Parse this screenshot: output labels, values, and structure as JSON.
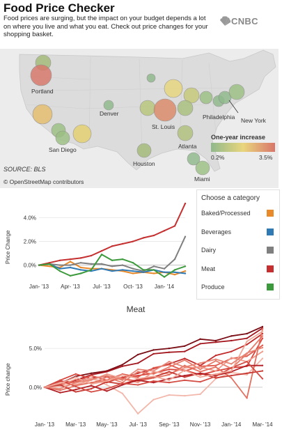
{
  "header": {
    "title": "Food Price Checker",
    "subtitle": "Food prices are surging, but the impact on your budget depends a lot on where you live and what you eat. Check out price changes for your shopping basket.",
    "brand": "CNBC"
  },
  "map": {
    "source": "SOURCE: BLS",
    "credit": "© OpenStreetMap contributors",
    "legend_title": "One-year increase",
    "legend_min": "0.2%",
    "legend_max": "3.5%",
    "legend_colors": [
      "#8fb98c",
      "#e9d67d",
      "#d9766a"
    ],
    "city_labels": [
      "Portland",
      "Denver",
      "San Diego",
      "St. Louis",
      "Houston",
      "Atlanta",
      "Philadelphia",
      "New York",
      "Miami"
    ]
  },
  "categories": {
    "header": "Choose a category",
    "items": [
      {
        "label": "Baked/Processed",
        "color": "#e8892a"
      },
      {
        "label": "Beverages",
        "color": "#2f79b5"
      },
      {
        "label": "Dairy",
        "color": "#7f7f7f"
      },
      {
        "label": "Meat",
        "color": "#c52f2f"
      },
      {
        "label": "Produce",
        "color": "#3c9a3c"
      }
    ]
  },
  "chart_data": [
    {
      "type": "line",
      "title": "",
      "xlabel": "",
      "ylabel": "Price Change",
      "x": [
        "Jan-13",
        "Feb-13",
        "Mar-13",
        "Apr-13",
        "May-13",
        "Jun-13",
        "Jul-13",
        "Aug-13",
        "Sep-13",
        "Oct-13",
        "Nov-13",
        "Dec-13",
        "Jan-14",
        "Feb-14",
        "Mar-14"
      ],
      "xticks": [
        "Jan- '13",
        "Apr- '13",
        "Jul- '13",
        "Oct- '13",
        "Jan- '14"
      ],
      "yticks": [
        "0.0%",
        "2.0%",
        "4.0%"
      ],
      "ylim": [
        -1.2,
        5.5
      ],
      "series": [
        {
          "name": "Baked/Processed",
          "color": "#e8892a",
          "values": [
            0,
            -0.1,
            -0.2,
            0.3,
            -0.2,
            -0.3,
            -0.3,
            -0.4,
            -0.5,
            -0.7,
            -0.6,
            -0.7,
            -0.6,
            -0.8,
            -0.5
          ]
        },
        {
          "name": "Beverages",
          "color": "#2f79b5",
          "values": [
            0,
            0.1,
            -0.3,
            -0.2,
            -0.4,
            -0.5,
            -0.3,
            -0.5,
            -0.4,
            -0.5,
            -0.6,
            -0.4,
            -0.6,
            -0.6,
            -0.7
          ]
        },
        {
          "name": "Dairy",
          "color": "#7f7f7f",
          "values": [
            0,
            0.1,
            0.0,
            0.0,
            0.2,
            0.1,
            0.1,
            -0.1,
            0.0,
            -0.3,
            -0.5,
            -0.1,
            -0.3,
            0.5,
            2.4
          ]
        },
        {
          "name": "Meat",
          "color": "#c52f2f",
          "values": [
            0,
            0.2,
            0.4,
            0.5,
            0.6,
            0.8,
            1.2,
            1.6,
            1.8,
            2.0,
            2.3,
            2.5,
            2.9,
            3.3,
            5.2
          ]
        },
        {
          "name": "Produce",
          "color": "#3c9a3c",
          "values": [
            0,
            0.1,
            -0.5,
            -0.9,
            -0.7,
            -0.4,
            0.9,
            0.4,
            0.5,
            0.2,
            -0.4,
            -0.4,
            -1.0,
            -0.4,
            -0.1
          ]
        }
      ]
    },
    {
      "type": "line",
      "title": "Meat",
      "xlabel": "",
      "ylabel": "Price change",
      "x": [
        "Jan-13",
        "Feb-13",
        "Mar-13",
        "Apr-13",
        "May-13",
        "Jun-13",
        "Jul-13",
        "Aug-13",
        "Sep-13",
        "Oct-13",
        "Nov-13",
        "Dec-13",
        "Jan-14",
        "Feb-14",
        "Mar-14"
      ],
      "xticks": [
        "Jan- '13",
        "Mar- '13",
        "May- '13",
        "Jul- '13",
        "Sep- '13",
        "Nov- '13",
        "Jan- '14",
        "Mar- '14"
      ],
      "yticks": [
        "0.0%",
        "5.0%"
      ],
      "ylim": [
        -3.6,
        8.6
      ],
      "series": [
        {
          "color": "#7a0c14",
          "values": [
            0,
            0.5,
            1.4,
            1.8,
            2.1,
            2.9,
            4.2,
            4.8,
            5.0,
            5.3,
            6.2,
            6.0,
            6.6,
            6.9,
            7.8
          ]
        },
        {
          "color": "#a4161e",
          "values": [
            0,
            0.3,
            0.9,
            1.6,
            2.0,
            2.7,
            3.1,
            4.3,
            4.5,
            4.6,
            5.6,
            5.8,
            6.0,
            6.3,
            7.6
          ]
        },
        {
          "color": "#c12a2a",
          "values": [
            0,
            0.8,
            0.6,
            1.2,
            1.4,
            1.2,
            1.8,
            2.4,
            3.0,
            3.7,
            2.8,
            4.1,
            4.6,
            5.5,
            6.9
          ]
        },
        {
          "color": "#d8433a",
          "values": [
            0,
            0.9,
            1.7,
            1.1,
            0.6,
            1.3,
            1.5,
            1.8,
            2.3,
            2.2,
            1.6,
            2.1,
            2.5,
            2.7,
            6.3
          ]
        },
        {
          "color": "#e05a4e",
          "values": [
            0,
            0.4,
            0.7,
            1.5,
            0.9,
            1.7,
            1.3,
            2.5,
            2.9,
            2.1,
            2.7,
            2.8,
            3.7,
            4.0,
            5.4
          ]
        },
        {
          "color": "#e87a6a",
          "values": [
            0,
            0.2,
            1.0,
            0.5,
            1.3,
            0.6,
            2.0,
            1.7,
            2.6,
            3.5,
            2.3,
            3.4,
            2.4,
            4.3,
            6.6
          ]
        },
        {
          "color": "#ef9a8a",
          "values": [
            0,
            0.6,
            0.3,
            0.9,
            1.7,
            1.1,
            0.6,
            2.0,
            1.7,
            2.5,
            2.6,
            2.1,
            3.8,
            3.3,
            4.6
          ]
        },
        {
          "color": "#f3b7aa",
          "values": [
            0,
            0.1,
            0.5,
            1.2,
            0.3,
            -0.8,
            -3.4,
            -1.6,
            -1.0,
            -1.1,
            -0.9,
            1.1,
            1.9,
            1.6,
            3.7
          ]
        },
        {
          "color": "#e46f5e",
          "values": [
            0,
            -0.4,
            0.2,
            0.6,
            0.9,
            1.1,
            0.8,
            1.2,
            1.6,
            2.8,
            2.0,
            2.6,
            1.2,
            -1.4,
            7.5
          ]
        },
        {
          "color": "#c73a33",
          "values": [
            0,
            0.3,
            -0.6,
            -0.2,
            0.7,
            0.4,
            1.0,
            1.3,
            2.0,
            1.3,
            1.8,
            1.2,
            1.5,
            1.8,
            2.1
          ]
        },
        {
          "color": "#b21f25",
          "values": [
            0,
            -0.7,
            -0.3,
            0.2,
            -0.5,
            0.3,
            0.9,
            0.6,
            1.1,
            1.5,
            1.8,
            1.5,
            2.0,
            2.8,
            2.8
          ]
        },
        {
          "color": "#d44d44",
          "values": [
            0,
            0.9,
            0.1,
            -0.6,
            -0.2,
            0.5,
            0.3,
            0.8,
            0.6,
            0.9,
            0.7,
            1.4,
            2.5,
            3.3,
            1.1
          ]
        },
        {
          "color": "#f0a898",
          "values": [
            0,
            0.5,
            1.3,
            0.4,
            0.8,
            1.6,
            1.1,
            1.4,
            0.9,
            2.2,
            1.3,
            1.7,
            2.1,
            5.9,
            7.2
          ]
        },
        {
          "color": "#e78676",
          "values": [
            0,
            -0.2,
            0.6,
            1.0,
            1.5,
            0.9,
            2.3,
            2.1,
            3.3,
            2.6,
            3.1,
            3.6,
            3.0,
            4.4,
            5.1
          ]
        }
      ]
    }
  ]
}
